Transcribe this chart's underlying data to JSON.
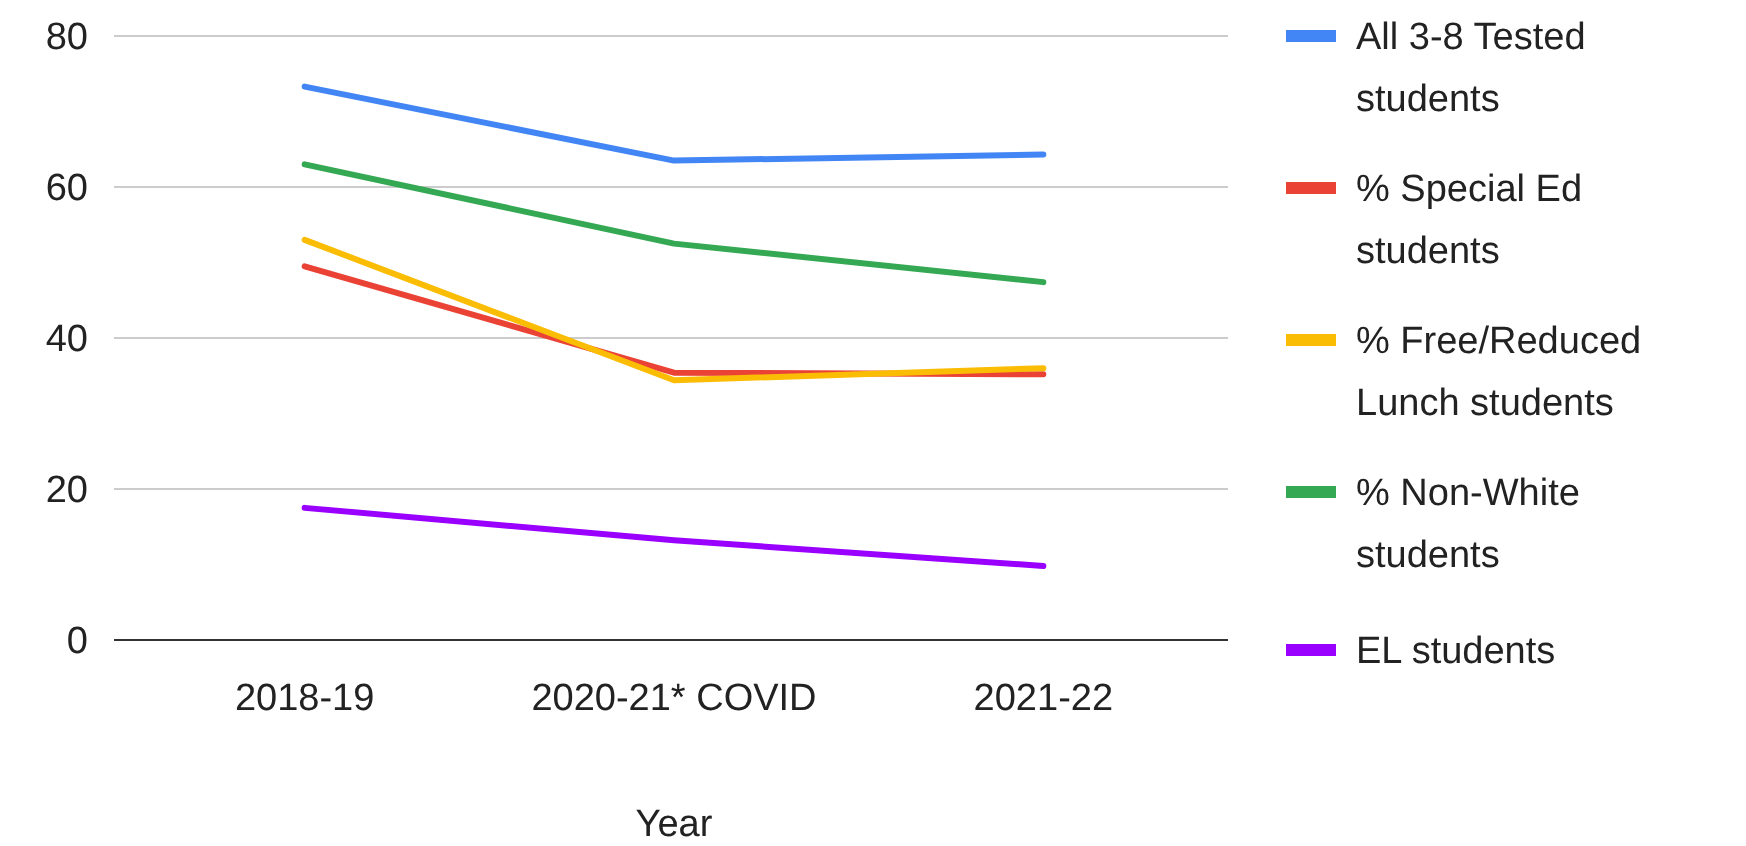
{
  "chart_data": {
    "type": "line",
    "xlabel": "Year",
    "categories": [
      "2018-19",
      "2020-21* COVID",
      "2021-22"
    ],
    "series": [
      {
        "name": "All 3-8 Tested students",
        "color": "#4285f4",
        "values": [
          73.3,
          63.5,
          64.3
        ]
      },
      {
        "name": "% Special Ed students",
        "color": "#ea4335",
        "values": [
          49.5,
          35.4,
          35.2
        ]
      },
      {
        "name": "% Free/Reduced Lunch students",
        "color": "#fbbc04",
        "values": [
          53,
          34.4,
          36
        ]
      },
      {
        "name": "% Non-White students",
        "color": "#34a853",
        "values": [
          63,
          52.5,
          47.4
        ]
      },
      {
        "name": "EL students",
        "color": "#9900ff",
        "values": [
          17.5,
          13.2,
          9.8
        ]
      }
    ],
    "ylim": [
      0,
      80
    ],
    "yticks": [
      0,
      20,
      40,
      60,
      80
    ],
    "grid": "y",
    "legend": "right",
    "marker": "none",
    "line_style": "solid"
  }
}
